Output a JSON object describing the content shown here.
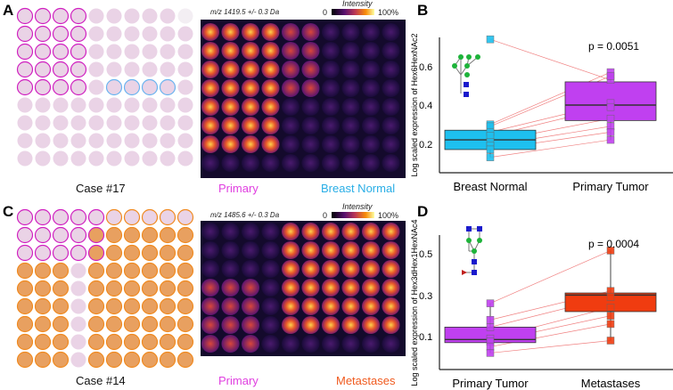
{
  "panels": {
    "A": {
      "label": "A",
      "case": "Case #17",
      "mz": "m/z 1419.5 +/- 0.3 Da",
      "colorbar": {
        "title": "Intensity",
        "min": "0",
        "max": "100%"
      },
      "groups": [
        {
          "name": "Primary",
          "color": "#e040e0"
        },
        {
          "name": "Breast Normal",
          "color": "#29aee6"
        }
      ]
    },
    "C": {
      "label": "C",
      "case": "Case #14",
      "mz": "m/z 1485.6 +/- 0.3 Da",
      "colorbar": {
        "title": "Intensity",
        "min": "0",
        "max": "100%"
      },
      "groups": [
        {
          "name": "Primary",
          "color": "#e040e0"
        },
        {
          "name": "Metastases",
          "color": "#f05a1e"
        }
      ]
    },
    "B": {
      "label": "B"
    },
    "D": {
      "label": "D"
    }
  },
  "chart_data": [
    {
      "type": "box",
      "panel": "B",
      "ylabel": "Log scaled expression of Hex6HexNAc2",
      "annotation": "p = 0.0051",
      "yticks": [
        0.2,
        0.4,
        0.6
      ],
      "ylim": [
        0.06,
        0.76
      ],
      "categories": [
        "Breast Normal",
        "Primary Tumor"
      ],
      "colors": [
        "#1ec0ef",
        "#c040f0"
      ],
      "boxes": [
        {
          "q1": 0.18,
          "median": 0.23,
          "q3": 0.28,
          "min": 0.14,
          "max": 0.31
        },
        {
          "q1": 0.33,
          "median": 0.41,
          "q3": 0.53,
          "min": 0.23,
          "max": 0.58
        }
      ],
      "points": [
        [
          0.75,
          0.31,
          0.3,
          0.27,
          0.25,
          0.22,
          0.2,
          0.18,
          0.14
        ],
        [
          0.54,
          0.58,
          0.56,
          0.42,
          0.4,
          0.34,
          0.3,
          0.27,
          0.23
        ]
      ]
    },
    {
      "type": "box",
      "panel": "D",
      "ylabel": "Log scaled expression of Hex3dHex1HexNAc4",
      "annotation": "p = 0.0004",
      "yticks": [
        0.1,
        0.3,
        0.5
      ],
      "ylim": [
        -0.05,
        0.6
      ],
      "categories": [
        "Primary Tumor",
        "Metastases"
      ],
      "colors": [
        "#c040f0",
        "#f03c10"
      ],
      "boxes": [
        {
          "q1": 0.08,
          "median": 0.095,
          "q3": 0.155,
          "min": 0.03,
          "max": 0.27
        },
        {
          "q1": 0.23,
          "median": 0.31,
          "q3": 0.32,
          "min": 0.09,
          "max": 0.525
        }
      ],
      "points": [
        [
          0.27,
          0.19,
          0.155,
          0.1,
          0.085,
          0.06,
          0.03
        ],
        [
          0.525,
          0.33,
          0.3,
          0.25,
          0.21,
          0.17,
          0.09
        ]
      ]
    }
  ]
}
